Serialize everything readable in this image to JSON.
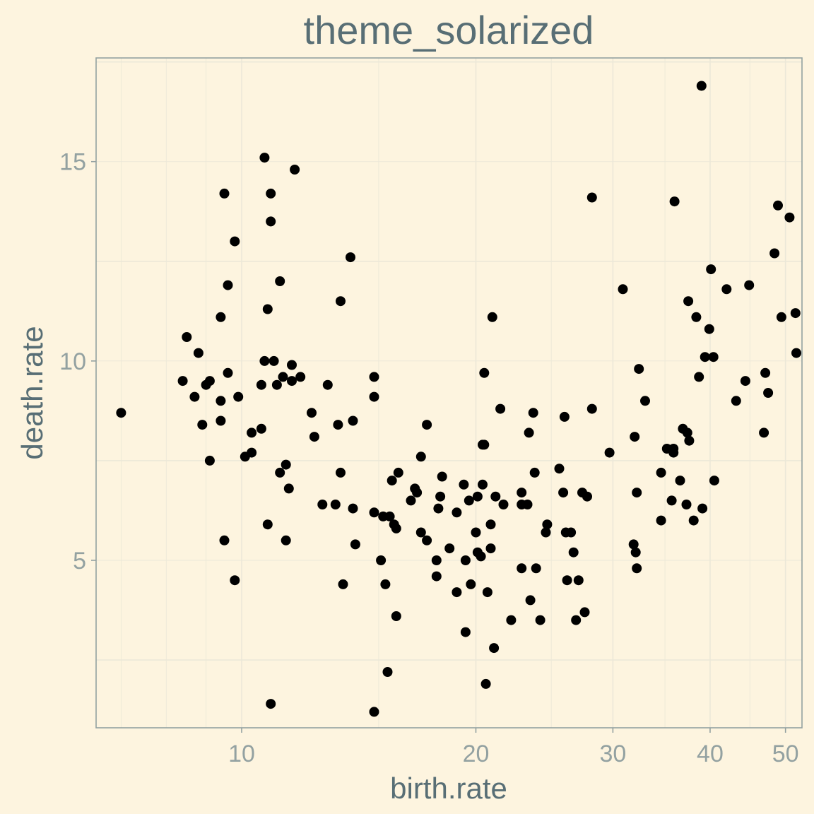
{
  "chart_data": {
    "type": "scatter",
    "title": "theme_solarized",
    "xlabel": "birth.rate",
    "ylabel": "death.rate",
    "x_scale": "log10",
    "xlim": [
      6.5,
      52.5
    ],
    "ylim": [
      0.8,
      17.6
    ],
    "x_ticks": [
      10,
      20,
      30,
      40,
      50
    ],
    "x_tick_labels": [
      "10",
      "20",
      "30",
      "40",
      "50"
    ],
    "y_ticks": [
      5,
      10,
      15
    ],
    "y_tick_labels": [
      "5",
      "10",
      "15"
    ],
    "grid": true,
    "colors": {
      "background": "#fdf4df",
      "panel_border": "#93a1a1",
      "grid": "#ece8d8",
      "point": "#000000",
      "title": "#586e75",
      "tick_text": "#93a1a1"
    },
    "points": [
      [
        7.0,
        8.7
      ],
      [
        8.4,
        9.5
      ],
      [
        8.5,
        10.6
      ],
      [
        8.7,
        9.1
      ],
      [
        8.8,
        10.2
      ],
      [
        8.9,
        8.4
      ],
      [
        9.0,
        9.4
      ],
      [
        9.1,
        9.5
      ],
      [
        9.1,
        7.5
      ],
      [
        9.4,
        9.0
      ],
      [
        9.4,
        8.5
      ],
      [
        9.4,
        11.1
      ],
      [
        9.5,
        14.2
      ],
      [
        9.5,
        5.5
      ],
      [
        9.6,
        11.9
      ],
      [
        9.6,
        9.7
      ],
      [
        9.8,
        13.0
      ],
      [
        9.8,
        4.5
      ],
      [
        9.9,
        9.1
      ],
      [
        10.1,
        7.6
      ],
      [
        10.3,
        8.2
      ],
      [
        10.3,
        7.7
      ],
      [
        10.6,
        8.3
      ],
      [
        10.6,
        9.4
      ],
      [
        10.7,
        10.0
      ],
      [
        10.7,
        15.1
      ],
      [
        10.8,
        11.3
      ],
      [
        10.8,
        5.9
      ],
      [
        10.9,
        14.2
      ],
      [
        10.9,
        13.5
      ],
      [
        10.9,
        1.4
      ],
      [
        11.0,
        10.0
      ],
      [
        11.1,
        9.4
      ],
      [
        11.2,
        12.0
      ],
      [
        11.2,
        7.2
      ],
      [
        11.3,
        9.6
      ],
      [
        11.4,
        7.4
      ],
      [
        11.4,
        5.5
      ],
      [
        11.5,
        6.8
      ],
      [
        11.6,
        9.5
      ],
      [
        11.6,
        9.9
      ],
      [
        11.7,
        14.8
      ],
      [
        11.9,
        9.6
      ],
      [
        12.3,
        8.7
      ],
      [
        12.4,
        8.1
      ],
      [
        12.7,
        6.4
      ],
      [
        12.9,
        9.4
      ],
      [
        13.2,
        6.4
      ],
      [
        13.3,
        8.4
      ],
      [
        13.4,
        11.5
      ],
      [
        13.4,
        7.2
      ],
      [
        13.5,
        4.4
      ],
      [
        13.8,
        12.6
      ],
      [
        13.9,
        8.5
      ],
      [
        13.9,
        6.3
      ],
      [
        14.0,
        5.4
      ],
      [
        14.8,
        9.6
      ],
      [
        14.8,
        9.1
      ],
      [
        14.8,
        6.2
      ],
      [
        14.8,
        1.2
      ],
      [
        15.1,
        5.0
      ],
      [
        15.2,
        6.1
      ],
      [
        15.3,
        4.4
      ],
      [
        15.4,
        2.2
      ],
      [
        15.5,
        6.1
      ],
      [
        15.6,
        7.0
      ],
      [
        15.7,
        5.9
      ],
      [
        15.8,
        5.8
      ],
      [
        15.8,
        3.6
      ],
      [
        15.9,
        7.2
      ],
      [
        16.5,
        6.5
      ],
      [
        16.7,
        6.8
      ],
      [
        16.8,
        6.7
      ],
      [
        17.0,
        7.6
      ],
      [
        17.0,
        5.7
      ],
      [
        17.3,
        8.4
      ],
      [
        17.3,
        5.5
      ],
      [
        17.8,
        5.0
      ],
      [
        17.8,
        4.6
      ],
      [
        17.9,
        6.3
      ],
      [
        18.0,
        6.6
      ],
      [
        18.1,
        7.1
      ],
      [
        18.5,
        5.3
      ],
      [
        18.9,
        6.2
      ],
      [
        18.9,
        4.2
      ],
      [
        19.3,
        6.9
      ],
      [
        19.4,
        5.0
      ],
      [
        19.4,
        3.2
      ],
      [
        19.6,
        6.5
      ],
      [
        19.7,
        4.4
      ],
      [
        20.0,
        5.7
      ],
      [
        20.1,
        6.6
      ],
      [
        20.1,
        5.2
      ],
      [
        20.3,
        5.1
      ],
      [
        20.4,
        7.9
      ],
      [
        20.4,
        6.9
      ],
      [
        20.5,
        7.9
      ],
      [
        20.5,
        9.7
      ],
      [
        20.6,
        1.9
      ],
      [
        20.7,
        4.2
      ],
      [
        20.9,
        5.9
      ],
      [
        20.9,
        5.3
      ],
      [
        21.0,
        11.1
      ],
      [
        21.1,
        2.8
      ],
      [
        21.2,
        6.6
      ],
      [
        21.5,
        8.8
      ],
      [
        21.7,
        6.4
      ],
      [
        22.2,
        3.5
      ],
      [
        22.9,
        6.7
      ],
      [
        22.9,
        6.4
      ],
      [
        22.9,
        4.8
      ],
      [
        23.3,
        6.4
      ],
      [
        23.4,
        8.2
      ],
      [
        23.5,
        4.0
      ],
      [
        23.7,
        8.7
      ],
      [
        23.8,
        7.2
      ],
      [
        23.9,
        4.8
      ],
      [
        24.2,
        3.5
      ],
      [
        24.6,
        5.7
      ],
      [
        24.7,
        5.9
      ],
      [
        25.6,
        7.3
      ],
      [
        25.9,
        6.7
      ],
      [
        26.0,
        8.6
      ],
      [
        26.1,
        5.7
      ],
      [
        26.2,
        4.5
      ],
      [
        26.5,
        5.7
      ],
      [
        26.7,
        5.2
      ],
      [
        26.9,
        3.5
      ],
      [
        27.1,
        4.5
      ],
      [
        27.4,
        6.7
      ],
      [
        27.6,
        3.7
      ],
      [
        27.8,
        6.6
      ],
      [
        28.2,
        14.1
      ],
      [
        28.2,
        8.8
      ],
      [
        29.7,
        7.7
      ],
      [
        30.9,
        11.8
      ],
      [
        31.9,
        5.4
      ],
      [
        32.0,
        8.1
      ],
      [
        32.1,
        5.2
      ],
      [
        32.2,
        6.7
      ],
      [
        32.2,
        4.8
      ],
      [
        32.4,
        9.8
      ],
      [
        33.0,
        9.0
      ],
      [
        34.6,
        7.2
      ],
      [
        34.6,
        6.0
      ],
      [
        35.2,
        7.8
      ],
      [
        35.7,
        6.5
      ],
      [
        35.9,
        7.8
      ],
      [
        35.9,
        7.7
      ],
      [
        36.0,
        14.0
      ],
      [
        36.6,
        7.0
      ],
      [
        36.9,
        8.3
      ],
      [
        37.3,
        6.4
      ],
      [
        37.4,
        8.2
      ],
      [
        37.5,
        11.5
      ],
      [
        37.6,
        8.0
      ],
      [
        38.1,
        6.0
      ],
      [
        38.4,
        11.1
      ],
      [
        38.7,
        9.6
      ],
      [
        39.0,
        16.9
      ],
      [
        39.1,
        6.3
      ],
      [
        39.4,
        10.1
      ],
      [
        39.9,
        10.8
      ],
      [
        40.1,
        12.3
      ],
      [
        40.4,
        10.1
      ],
      [
        40.5,
        7.0
      ],
      [
        42.0,
        11.8
      ],
      [
        43.2,
        9.0
      ],
      [
        44.4,
        9.5
      ],
      [
        44.9,
        11.9
      ],
      [
        46.9,
        8.2
      ],
      [
        47.1,
        9.7
      ],
      [
        47.5,
        9.2
      ],
      [
        48.4,
        12.7
      ],
      [
        48.9,
        13.9
      ],
      [
        49.4,
        11.1
      ],
      [
        50.6,
        13.6
      ],
      [
        51.5,
        11.2
      ],
      [
        54.0,
        10.2
      ]
    ]
  }
}
